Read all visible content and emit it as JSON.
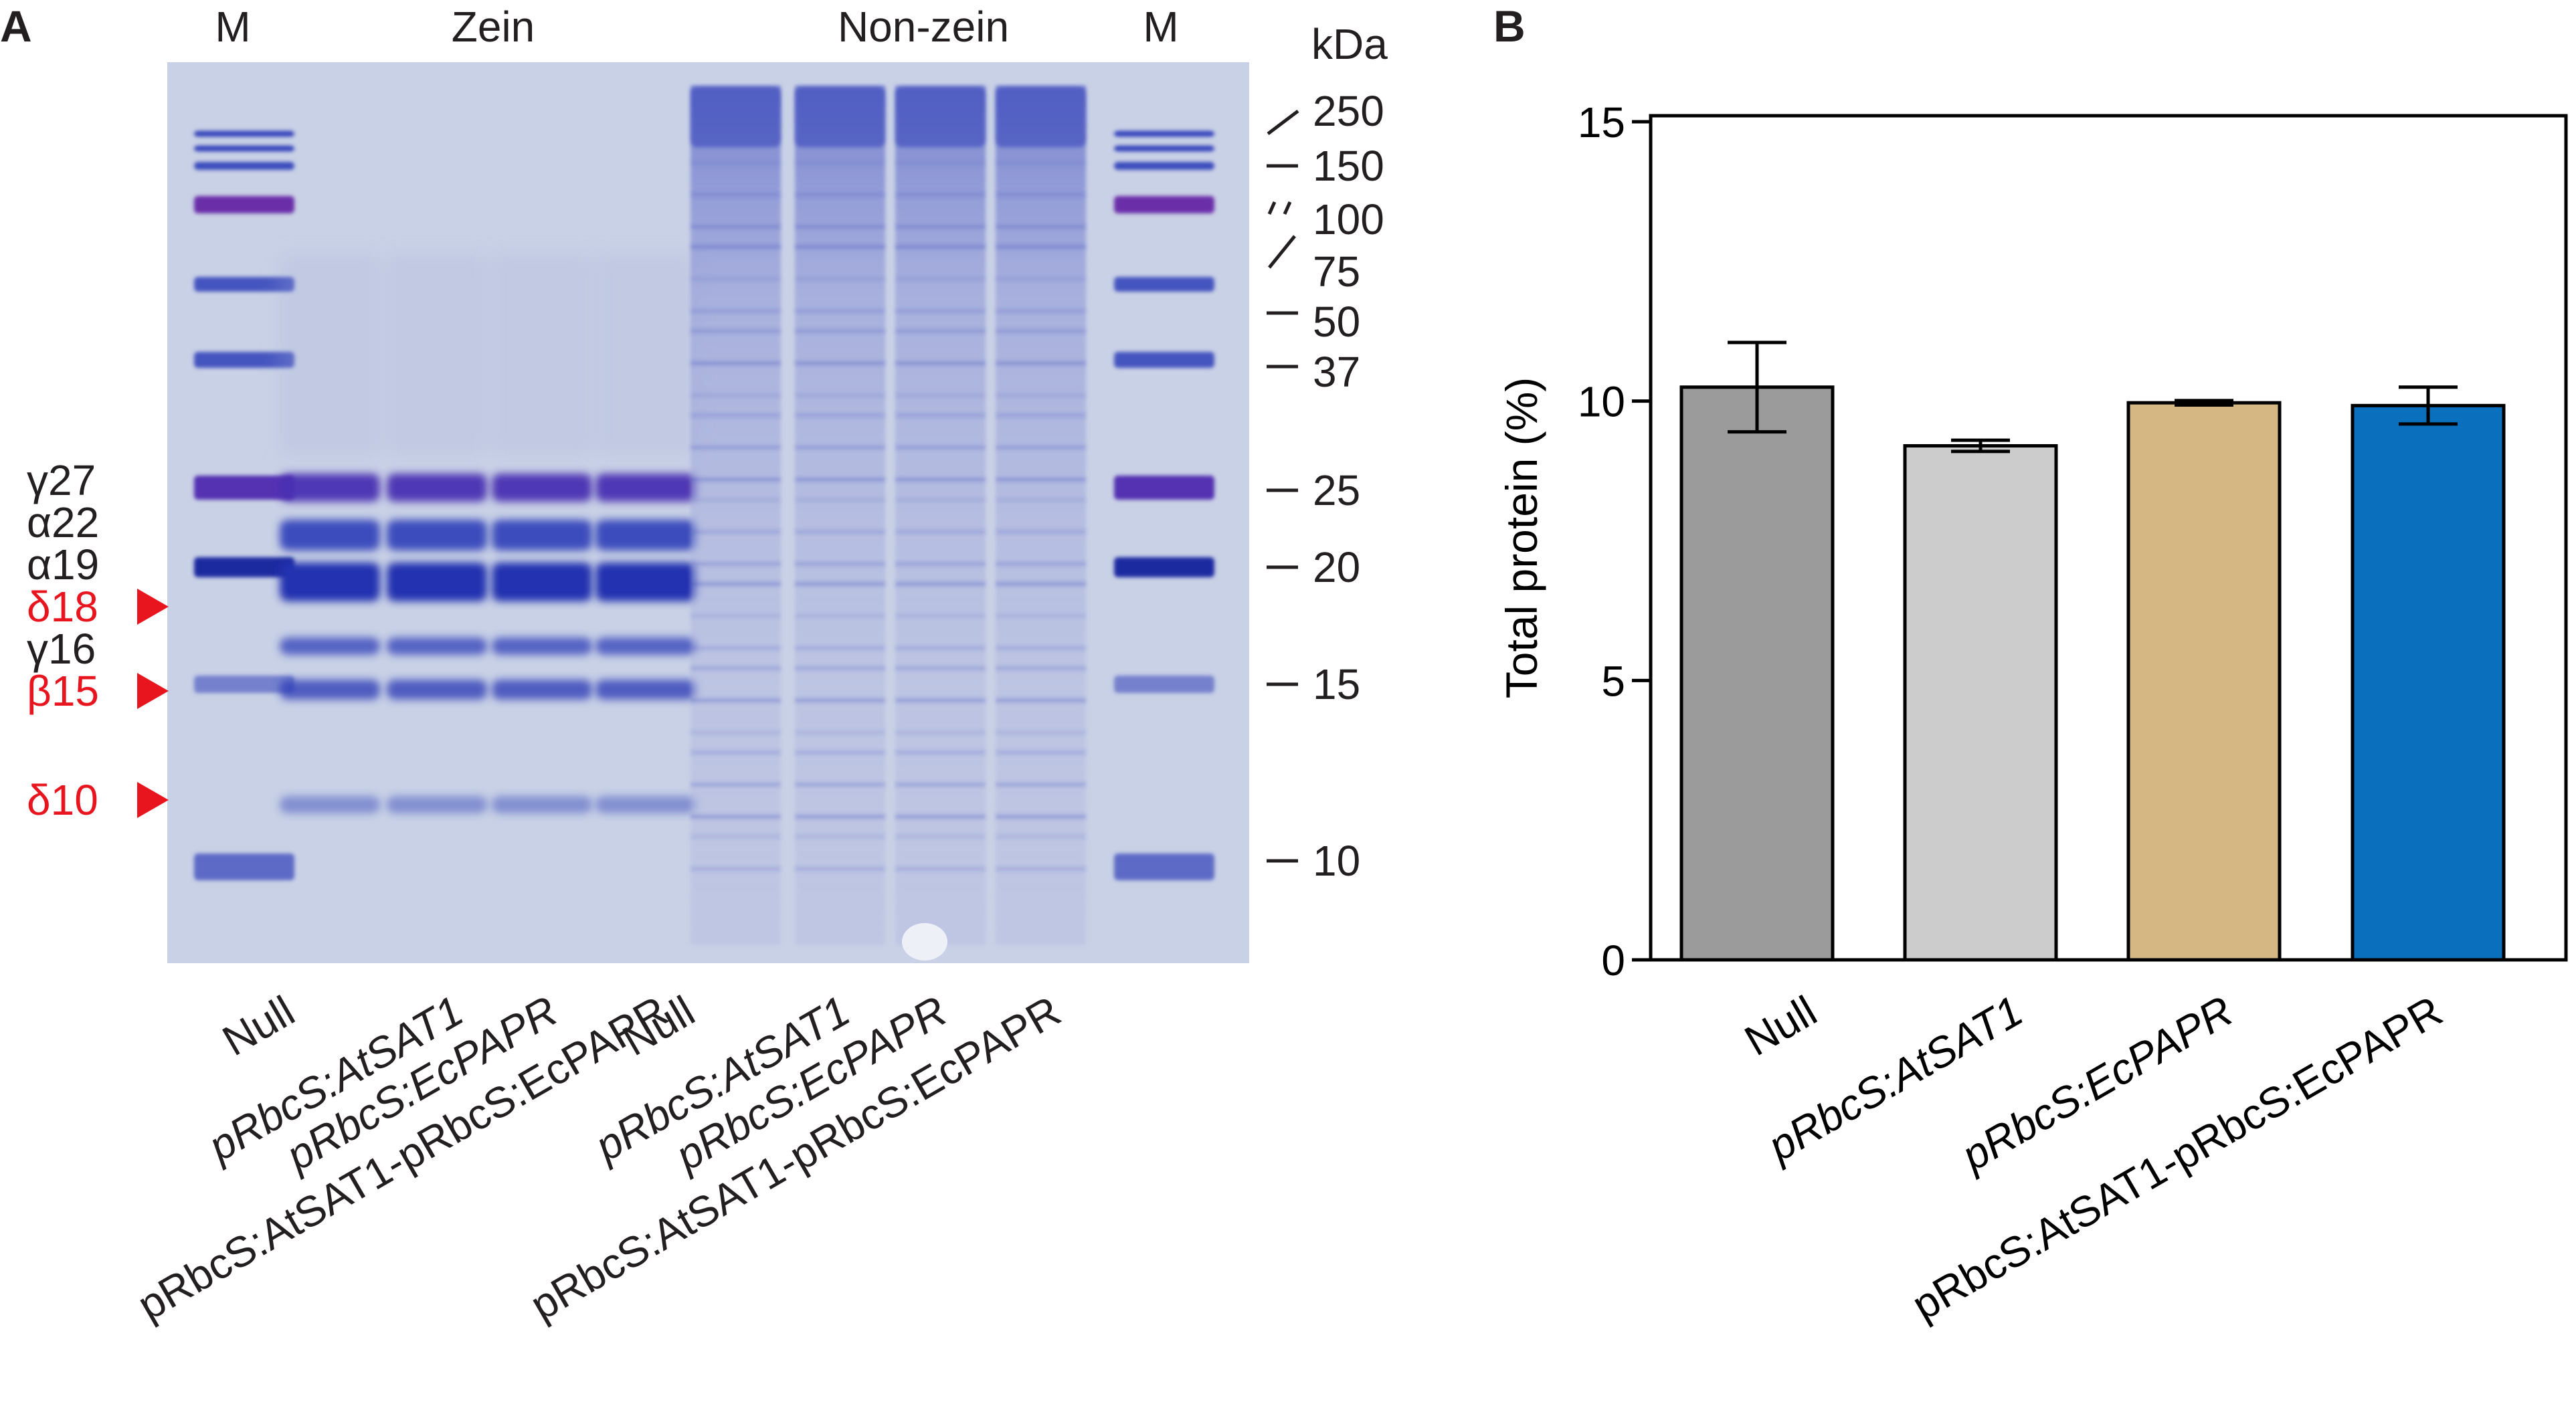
{
  "panel_a": {
    "label": "A",
    "header_m_left": "M",
    "header_zein": "Zein",
    "header_nonzein": "Non-zein",
    "header_m_right": "M",
    "kda_unit": "kDa",
    "markers": [
      "250",
      "150",
      "100",
      "75",
      "50",
      "37",
      "25",
      "20",
      "15",
      "10"
    ],
    "zein_labels": [
      {
        "text": "γ27",
        "color": "#231f20",
        "arrow": false
      },
      {
        "text": "α22",
        "color": "#231f20",
        "arrow": false
      },
      {
        "text": "α19",
        "color": "#231f20",
        "arrow": false
      },
      {
        "text": "δ18",
        "color": "#e8141e",
        "arrow": true
      },
      {
        "text": "γ16",
        "color": "#231f20",
        "arrow": false
      },
      {
        "text": "β15",
        "color": "#e8141e",
        "arrow": true
      },
      {
        "text": "δ10",
        "color": "#e8141e",
        "arrow": true
      }
    ],
    "lane_labels": [
      "Null",
      "pRbcS:AtSAT1",
      "pRbcS:EcPAPR",
      "pRbcS:AtSAT1-pRbcS:EcPAPR",
      "Null",
      "pRbcS:AtSAT1",
      "pRbcS:EcPAPR",
      "pRbcS:AtSAT1-pRbcS:EcPAPR"
    ],
    "gel_background": "#c9d1e6",
    "stain_color": "#2f3fb8"
  },
  "panel_b": {
    "label": "B",
    "chart_data": {
      "type": "bar",
      "categories": [
        "Null",
        "pRbcS:AtSAT1",
        "pRbcS:EcPAPR",
        "pRbcS:AtSAT1-pRbcS:EcPAPR"
      ],
      "values": [
        10.25,
        9.2,
        9.97,
        9.92
      ],
      "errors": [
        0.8,
        0.1,
        0.04,
        0.33
      ],
      "colors": [
        "#9b9b9b",
        "#cccccc",
        "#d5b783",
        "#0a6fbd"
      ],
      "ylabel": "Total protein (%)",
      "ylim": [
        0,
        15
      ],
      "yticks": [
        0,
        5,
        10,
        15
      ],
      "grid": false,
      "legend": "none"
    }
  }
}
